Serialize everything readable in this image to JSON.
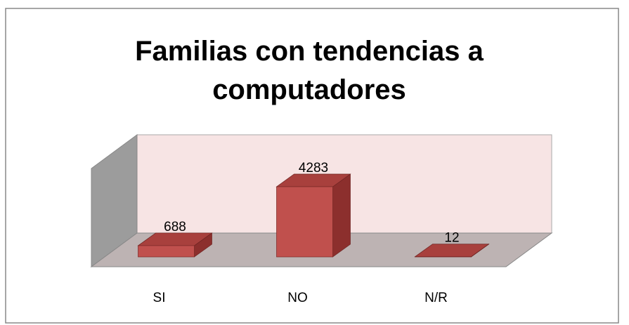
{
  "chart_data": {
    "type": "bar",
    "title": "Familias con tendencias a computadores",
    "categories": [
      "SI",
      "NO",
      "N/R"
    ],
    "values": [
      688,
      4283,
      12
    ],
    "color": "#c0504d"
  }
}
